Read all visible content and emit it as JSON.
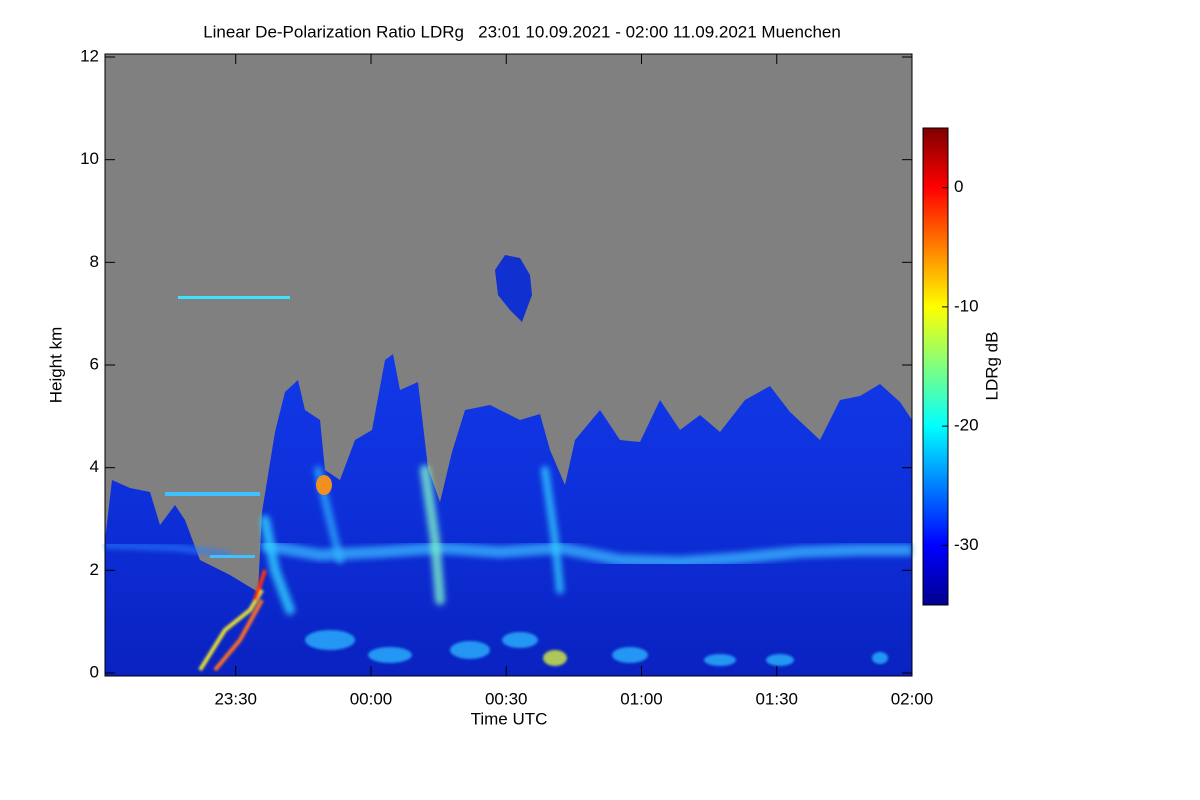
{
  "chart_data": {
    "type": "heatmap",
    "title": "Linear De-Polarization Ratio LDRg   23:01 10.09.2021 - 02:00 11.09.2021 Muenchen",
    "x_label": "Time UTC",
    "y_label": "Height km",
    "xlim": [
      "23:01",
      "02:00"
    ],
    "xticks": [
      "23:30",
      "00:00",
      "00:30",
      "01:00",
      "01:30",
      "02:00"
    ],
    "ylim": [
      0,
      12
    ],
    "yticks": [
      0,
      2,
      4,
      6,
      8,
      10,
      12
    ],
    "colorbar": {
      "label": "LDRg dB",
      "lim": [
        -35,
        5
      ],
      "ticks": [
        0,
        -10,
        -20,
        -30
      ],
      "colormap": "jet"
    }
  }
}
